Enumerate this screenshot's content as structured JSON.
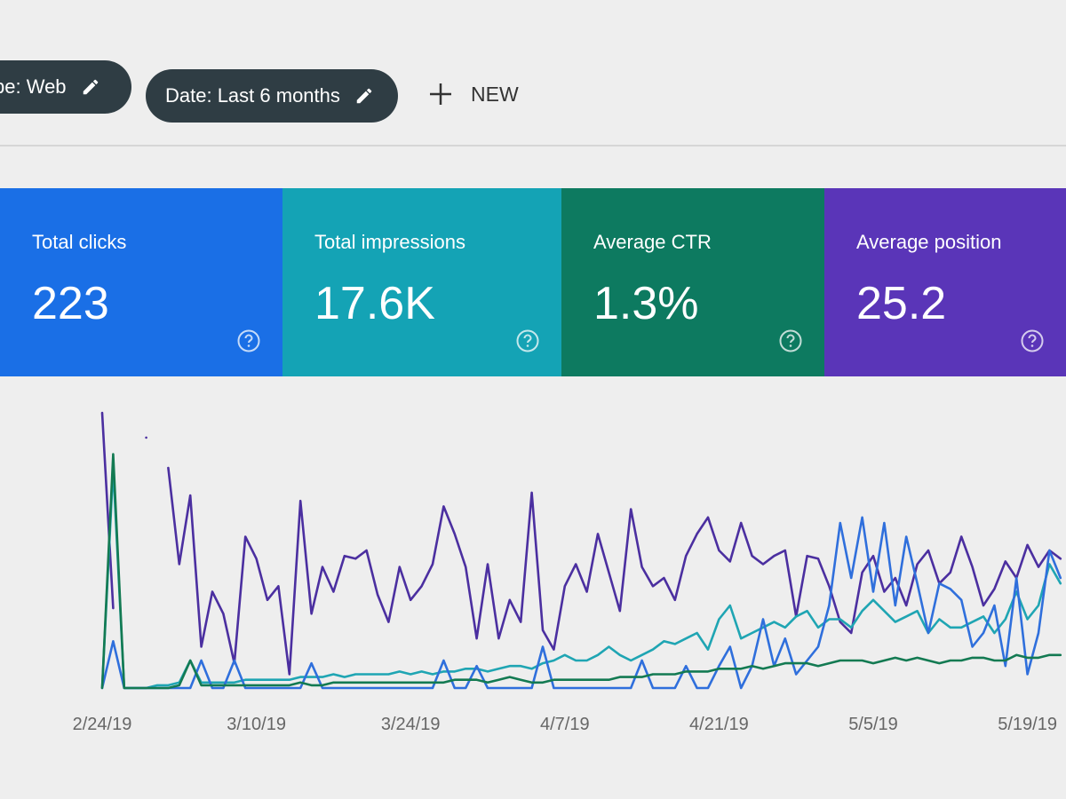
{
  "filters": [
    {
      "label": "ype: Web"
    },
    {
      "label": "Date: Last 6 months"
    }
  ],
  "new_button": "NEW",
  "metrics": [
    {
      "label": "Total clicks",
      "value": "223",
      "color": "#1a6fe6"
    },
    {
      "label": "Total impressions",
      "value": "17.6K",
      "color": "#14a3b5"
    },
    {
      "label": "Average CTR",
      "value": "1.3%",
      "color": "#0d7a60"
    },
    {
      "label": "Average position",
      "value": "25.2",
      "color": "#5a35b8"
    }
  ],
  "chart_data": {
    "type": "line",
    "categories": [
      "2/24/19",
      null,
      null,
      null,
      null,
      null,
      null,
      null,
      null,
      null,
      null,
      null,
      null,
      null,
      "3/10/19",
      null,
      null,
      null,
      null,
      null,
      null,
      null,
      null,
      null,
      null,
      null,
      null,
      null,
      "3/24/19",
      null,
      null,
      null,
      null,
      null,
      null,
      null,
      null,
      null,
      null,
      null,
      null,
      null,
      "4/7/19",
      null,
      null,
      null,
      null,
      null,
      null,
      null,
      null,
      null,
      null,
      null,
      null,
      null,
      "4/21/19",
      null,
      null,
      null,
      null,
      null,
      null,
      null,
      null,
      null,
      null,
      null,
      null,
      null,
      "5/5/19",
      null,
      null,
      null,
      null,
      null,
      null,
      null,
      null,
      null,
      null,
      null,
      null,
      null,
      "5/19/19",
      null,
      null,
      null
    ],
    "ylim": [
      0,
      100
    ],
    "series": [
      {
        "color": "#4b2fa0",
        "values": [
          100,
          29,
          null,
          null,
          91,
          null,
          80,
          45,
          70,
          15,
          35,
          27,
          9,
          55,
          47,
          32,
          37,
          5,
          68,
          27,
          44,
          35,
          48,
          47,
          50,
          34,
          24,
          44,
          32,
          37,
          45,
          66,
          56,
          44,
          18,
          45,
          18,
          32,
          24,
          71,
          21,
          14,
          37,
          45,
          35,
          56,
          42,
          28,
          65,
          44,
          37,
          40,
          32,
          48,
          56,
          62,
          50,
          46,
          60,
          48,
          45,
          48,
          50,
          26,
          48,
          47,
          37,
          24,
          20,
          42,
          48,
          35,
          40,
          30,
          45,
          50,
          38,
          42,
          55,
          44,
          30,
          36,
          46,
          40,
          52,
          44,
          50,
          47
        ]
      },
      {
        "color": "#1fa5b3",
        "values": [
          0,
          80,
          0,
          0,
          0,
          1,
          1,
          2,
          10,
          2,
          2,
          2,
          2,
          3,
          3,
          3,
          3,
          3,
          4,
          4,
          4,
          5,
          4,
          5,
          5,
          5,
          5,
          6,
          5,
          6,
          5,
          6,
          6,
          7,
          7,
          6,
          7,
          8,
          8,
          7,
          9,
          10,
          12,
          10,
          10,
          12,
          15,
          12,
          10,
          12,
          14,
          17,
          16,
          18,
          20,
          14,
          25,
          30,
          18,
          20,
          22,
          24,
          22,
          26,
          28,
          22,
          25,
          25,
          22,
          28,
          32,
          28,
          24,
          26,
          28,
          20,
          25,
          22,
          22,
          24,
          26,
          20,
          25,
          35,
          25,
          30,
          45,
          38
        ]
      },
      {
        "color": "#2f6fdc",
        "values": [
          0,
          17,
          0,
          0,
          0,
          0,
          0,
          0,
          0,
          10,
          0,
          0,
          10,
          0,
          0,
          0,
          0,
          0,
          0,
          9,
          0,
          0,
          0,
          0,
          0,
          0,
          0,
          0,
          0,
          0,
          0,
          10,
          0,
          0,
          8,
          0,
          0,
          0,
          0,
          0,
          15,
          0,
          0,
          0,
          0,
          0,
          0,
          0,
          0,
          10,
          0,
          0,
          0,
          8,
          0,
          0,
          8,
          15,
          0,
          8,
          25,
          8,
          18,
          5,
          10,
          15,
          30,
          60,
          40,
          62,
          35,
          60,
          30,
          55,
          38,
          20,
          38,
          36,
          32,
          15,
          20,
          30,
          8,
          40,
          5,
          20,
          50,
          40
        ]
      },
      {
        "color": "#137a52",
        "values": [
          0,
          85,
          0,
          0,
          0,
          0,
          0,
          1,
          10,
          1,
          1,
          1,
          1,
          1,
          1,
          1,
          1,
          1,
          2,
          1,
          1,
          2,
          2,
          2,
          2,
          2,
          2,
          2,
          2,
          2,
          2,
          2,
          3,
          3,
          3,
          2,
          3,
          4,
          3,
          2,
          2,
          3,
          3,
          3,
          3,
          3,
          3,
          4,
          4,
          4,
          5,
          5,
          5,
          6,
          6,
          6,
          7,
          7,
          7,
          8,
          7,
          8,
          9,
          9,
          9,
          8,
          9,
          10,
          10,
          10,
          9,
          10,
          11,
          10,
          11,
          10,
          9,
          10,
          10,
          11,
          11,
          10,
          10,
          12,
          11,
          11,
          12,
          12
        ]
      }
    ]
  }
}
